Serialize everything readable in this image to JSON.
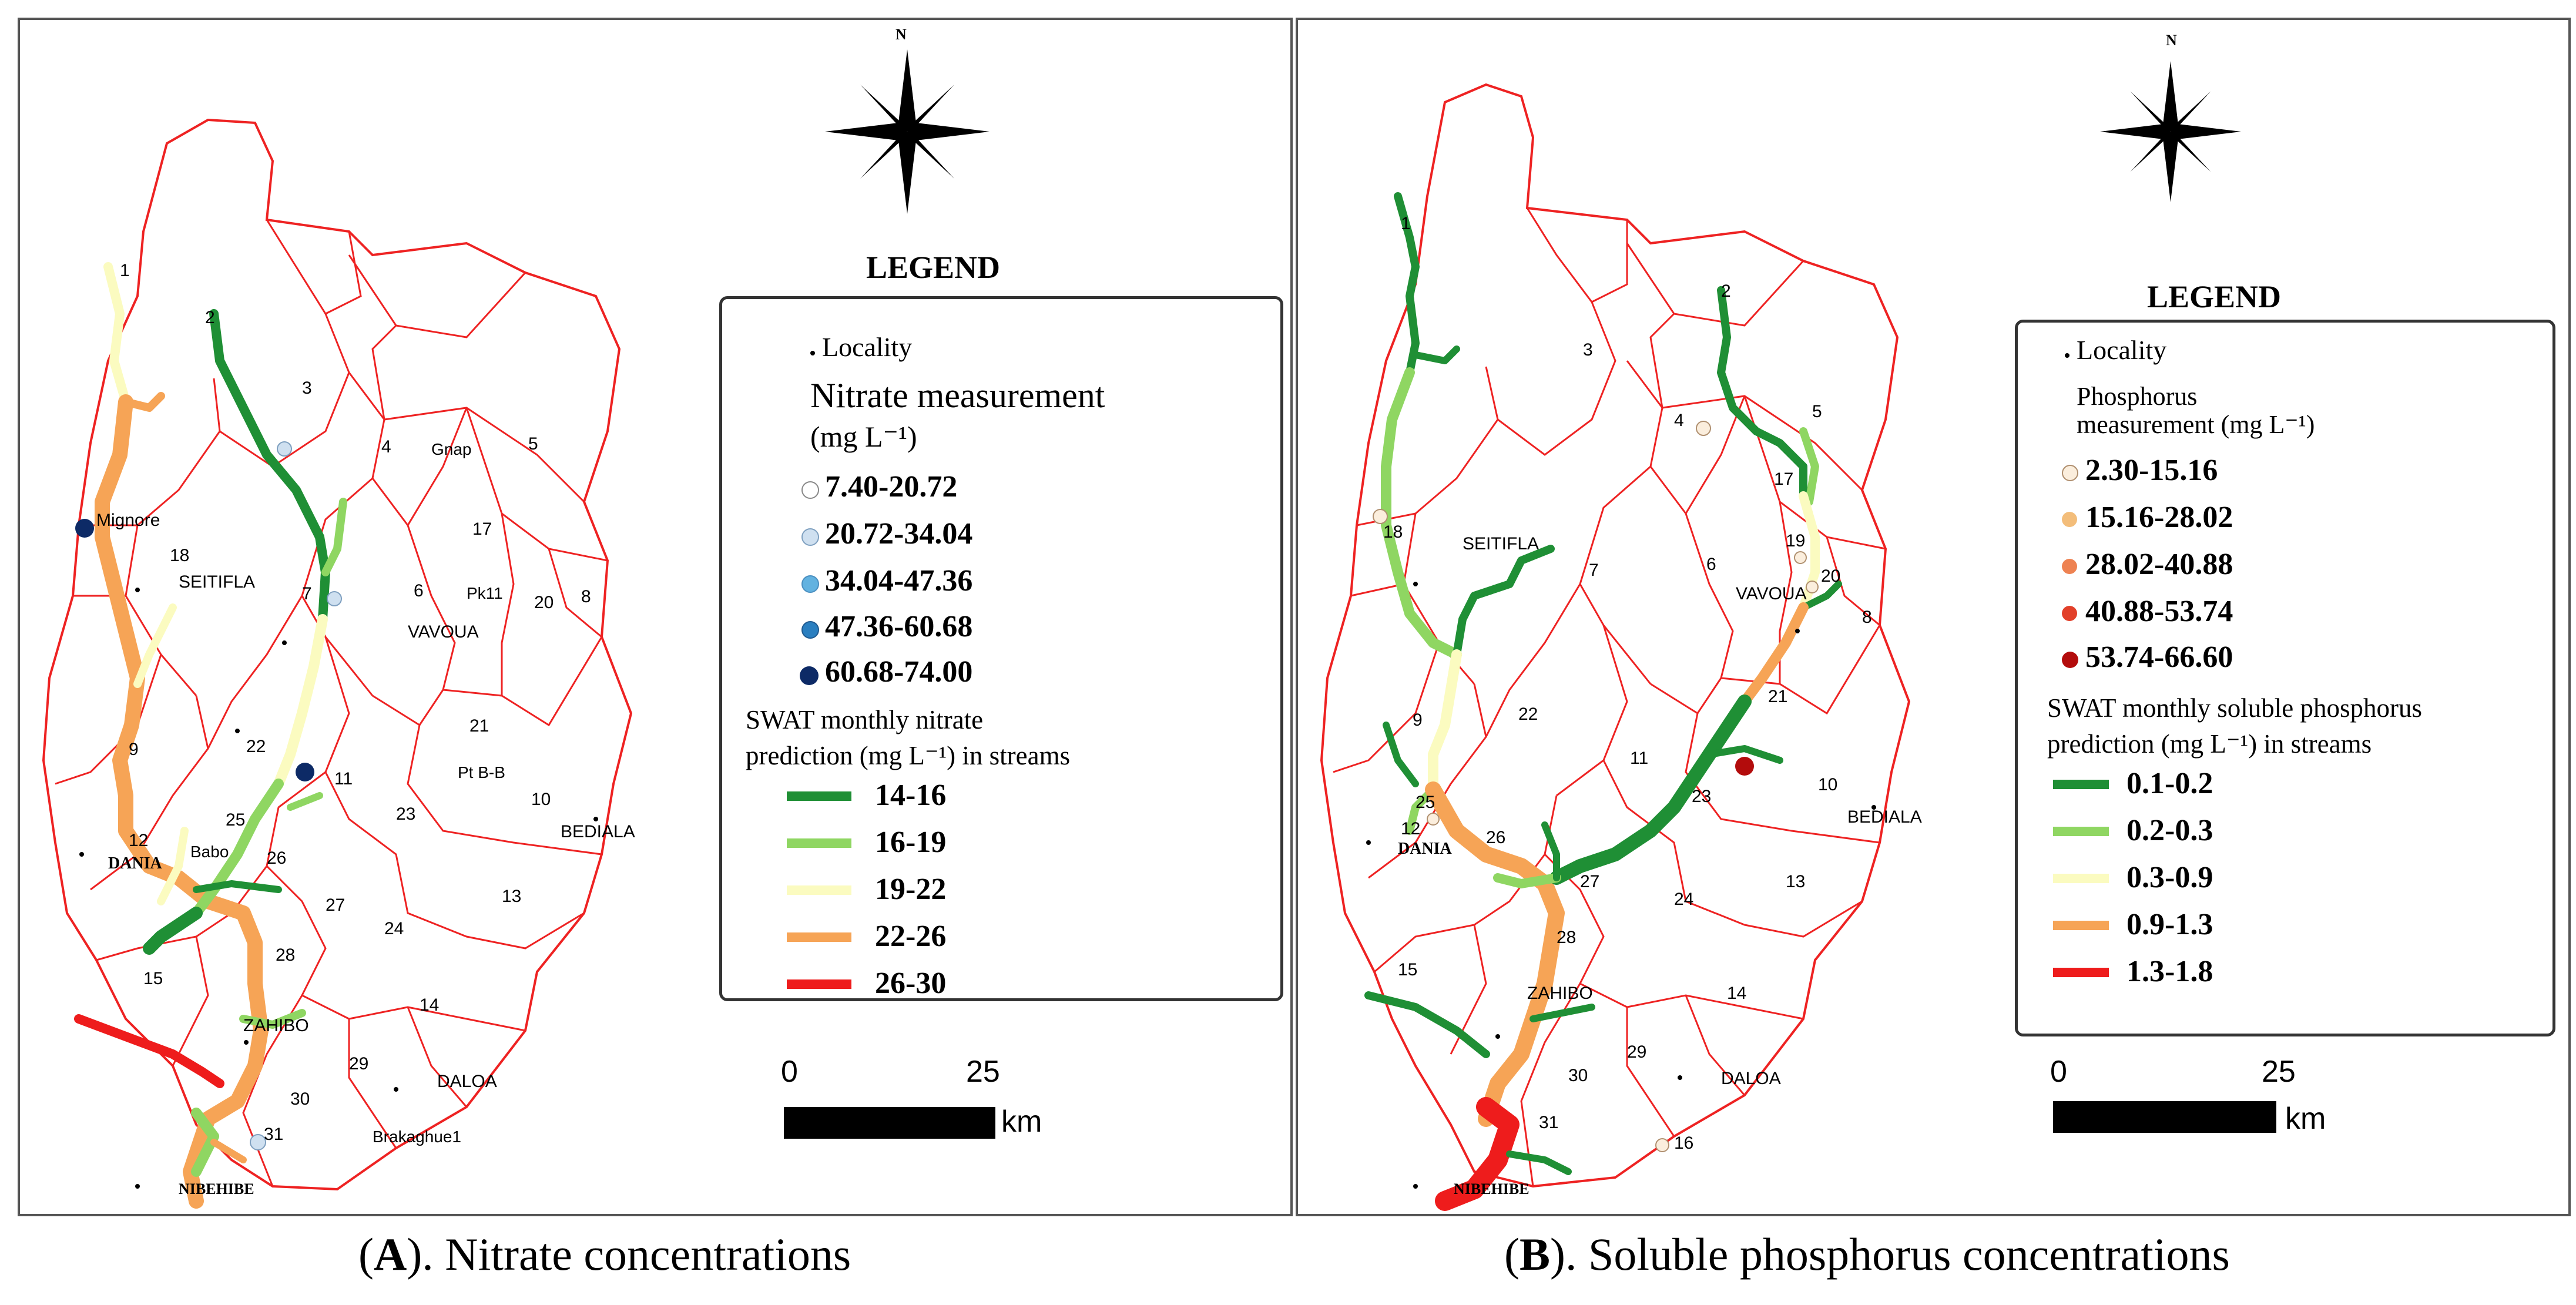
{
  "panels": [
    {
      "id": "A",
      "north_label": "N",
      "legend_title": "LEGEND",
      "locality_label": "Locality",
      "measure_title_1": "Nitrate measurement",
      "measure_title_2": "(mg L⁻¹)",
      "measurement_classes": [
        {
          "label": "7.40-20.72",
          "color": "#ffffff"
        },
        {
          "label": "20.72-34.04",
          "color": "#cfe0f0"
        },
        {
          "label": "34.04-47.36",
          "color": "#62b2e0"
        },
        {
          "label": "47.36-60.68",
          "color": "#2a7fc0"
        },
        {
          "label": "60.68-74.00",
          "color": "#0d2a66"
        }
      ],
      "prediction_title_1": "SWAT monthly nitrate",
      "prediction_title_2": "prediction (mg L⁻¹) in streams",
      "prediction_classes": [
        {
          "label": "14-16",
          "color": "#1f8f35"
        },
        {
          "label": "16-19",
          "color": "#8fd662"
        },
        {
          "label": "19-22",
          "color": "#fbfbc0"
        },
        {
          "label": "22-26",
          "color": "#f6a456"
        },
        {
          "label": "26-30",
          "color": "#ee1c1c"
        }
      ],
      "scale_labels": [
        "0",
        "25"
      ],
      "scale_unit": "km",
      "caption_letter": "A",
      "caption_rest": "). Nitrate concentrations",
      "localities": [
        "Mignore",
        "SEITIFLA",
        "Gnap",
        "VAVOUA",
        "Pk11",
        "Pt B-B",
        "BEDIALA",
        "DANIA",
        "Babo",
        "ZAHIBO",
        "DALOA",
        "Brakaghue1",
        "NIBEHIBE"
      ],
      "subbasins": [
        "1",
        "2",
        "3",
        "4",
        "5",
        "6",
        "7",
        "8",
        "9",
        "10",
        "11",
        "12",
        "13",
        "14",
        "15",
        "17",
        "18",
        "20",
        "21",
        "22",
        "23",
        "24",
        "25",
        "26",
        "27",
        "28",
        "29",
        "30",
        "31"
      ]
    },
    {
      "id": "B",
      "north_label": "N",
      "legend_title": "LEGEND",
      "locality_label": "Locality",
      "measure_title_1": "Phosphorus",
      "measure_title_2": "measurement (mg L⁻¹)",
      "measurement_classes": [
        {
          "label": "2.30-15.16",
          "color": "#fbeedd"
        },
        {
          "label": "15.16-28.02",
          "color": "#f3bd7a"
        },
        {
          "label": "28.02-40.88",
          "color": "#ee8252"
        },
        {
          "label": "40.88-53.74",
          "color": "#e2402a"
        },
        {
          "label": "53.74-66.60",
          "color": "#b30c0c"
        }
      ],
      "prediction_title_1": "SWAT monthly soluble phosphorus",
      "prediction_title_2": "prediction (mg L⁻¹) in streams",
      "prediction_classes": [
        {
          "label": "0.1-0.2",
          "color": "#1f8f35"
        },
        {
          "label": "0.2-0.3",
          "color": "#8fd662"
        },
        {
          "label": "0.3-0.9",
          "color": "#fbfbc0"
        },
        {
          "label": "0.9-1.3",
          "color": "#f6a456"
        },
        {
          "label": "1.3-1.8",
          "color": "#ee1c1c"
        }
      ],
      "scale_labels": [
        "0",
        "25"
      ],
      "scale_unit": "km",
      "caption_letter": "B",
      "caption_rest": "). Soluble phosphorus concentrations",
      "localities": [
        "SEITIFLA",
        "VAVOUA",
        "BEDIALA",
        "DANIA",
        "ZAHIBO",
        "DALOA",
        "NIBEHIBE"
      ],
      "subbasins": [
        "1",
        "2",
        "3",
        "4",
        "5",
        "6",
        "7",
        "8",
        "9",
        "10",
        "11",
        "12",
        "13",
        "14",
        "15",
        "16",
        "17",
        "18",
        "19",
        "20",
        "21",
        "22",
        "23",
        "24",
        "25",
        "26",
        "27",
        "28",
        "29",
        "30",
        "31"
      ]
    }
  ]
}
